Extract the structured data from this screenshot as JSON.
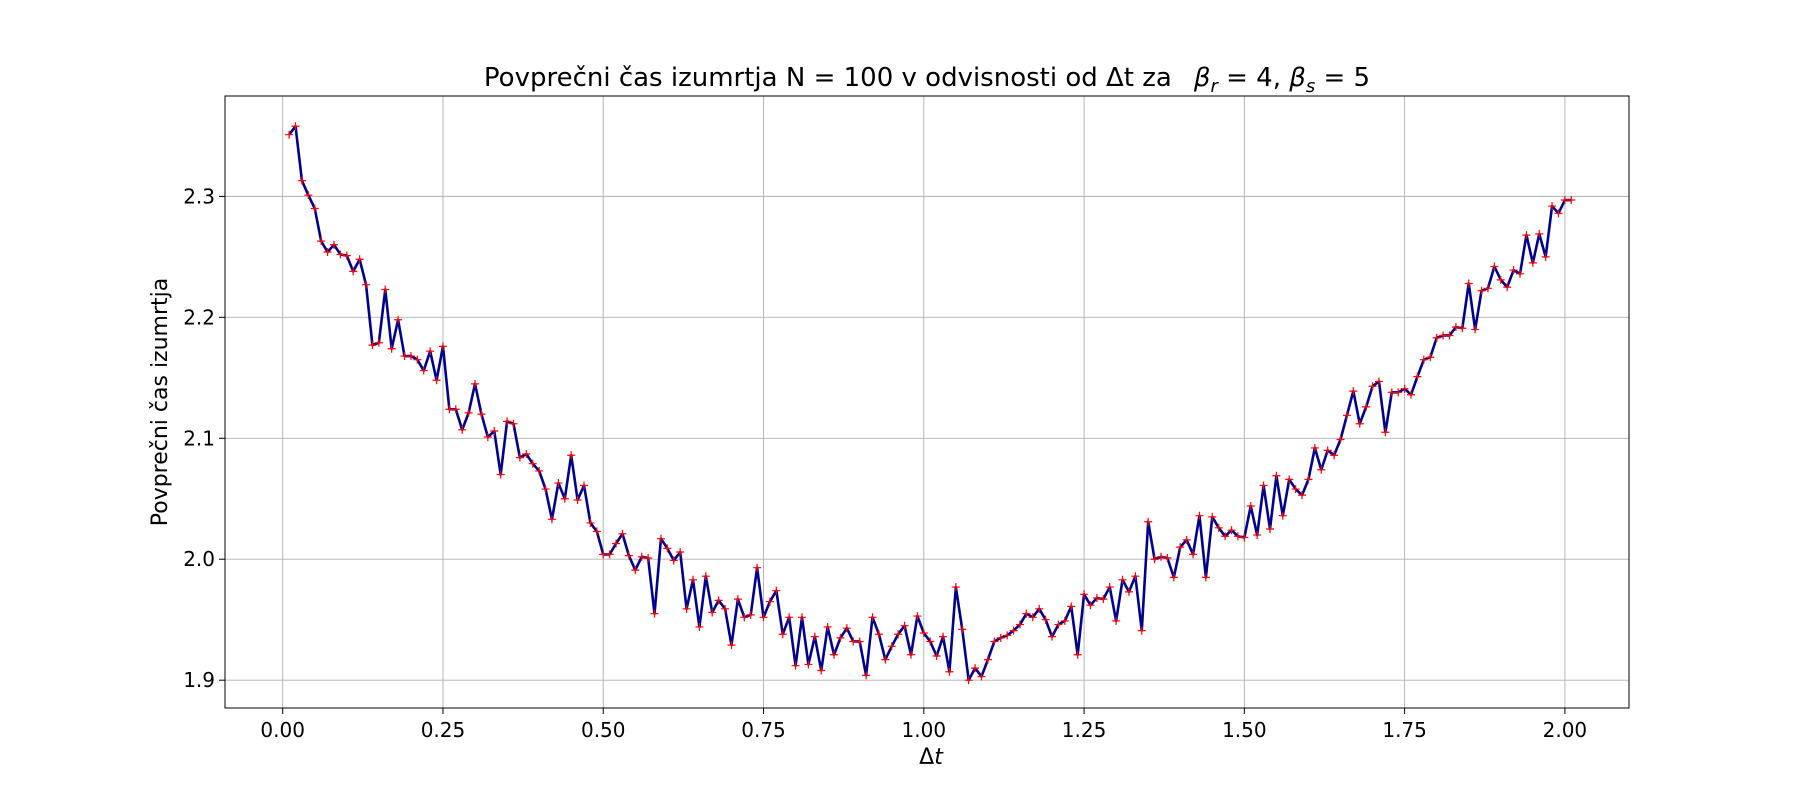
{
  "chart_data": {
    "type": "line",
    "title": "Povprečni čas izumrtja N = 100 v odvisnosti od Δt za",
    "title_math": {
      "beta_r_sym": "β",
      "beta_r_sub": "r",
      "beta_r_eq": " = 4, ",
      "beta_s_sym": "β",
      "beta_s_sub": "s",
      "beta_s_eq": " = 5"
    },
    "xlabel": "Δ",
    "xlabel_var": "t",
    "ylabel": "Povprečni čas izumrtja",
    "xlim": [
      -0.09,
      2.1
    ],
    "ylim": [
      1.877,
      2.383
    ],
    "xticks": [
      0.0,
      0.25,
      0.5,
      0.75,
      1.0,
      1.25,
      1.5,
      1.75,
      2.0
    ],
    "xtick_labels": [
      "0.00",
      "0.25",
      "0.50",
      "0.75",
      "1.00",
      "1.25",
      "1.50",
      "1.75",
      "2.00"
    ],
    "yticks": [
      1.9,
      2.0,
      2.1,
      2.2,
      2.3
    ],
    "ytick_labels": [
      "1.9",
      "2.0",
      "2.1",
      "2.2",
      "2.3"
    ],
    "grid": true,
    "line_color": "#00008b",
    "marker_color": "#ff0000",
    "marker": "+",
    "x_start": 0.01,
    "x_step": 0.01,
    "y": [
      2.351,
      2.358,
      2.313,
      2.301,
      2.29,
      2.263,
      2.254,
      2.26,
      2.252,
      2.251,
      2.238,
      2.248,
      2.227,
      2.177,
      2.179,
      2.223,
      2.174,
      2.198,
      2.168,
      2.168,
      2.165,
      2.156,
      2.172,
      2.148,
      2.176,
      2.124,
      2.124,
      2.107,
      2.121,
      2.145,
      2.12,
      2.101,
      2.106,
      2.07,
      2.114,
      2.112,
      2.084,
      2.087,
      2.079,
      2.073,
      2.058,
      2.033,
      2.063,
      2.05,
      2.086,
      2.049,
      2.061,
      2.03,
      2.023,
      2.004,
      2.004,
      2.013,
      2.021,
      2.003,
      1.991,
      2.002,
      2.001,
      1.955,
      2.017,
      2.009,
      1.999,
      2.006,
      1.959,
      1.983,
      1.944,
      1.986,
      1.956,
      1.966,
      1.959,
      1.929,
      1.967,
      1.952,
      1.954,
      1.993,
      1.952,
      1.965,
      1.974,
      1.938,
      1.952,
      1.912,
      1.952,
      1.913,
      1.936,
      1.908,
      1.944,
      1.921,
      1.935,
      1.943,
      1.932,
      1.932,
      1.904,
      1.952,
      1.938,
      1.917,
      1.928,
      1.938,
      1.945,
      1.921,
      1.953,
      1.939,
      1.932,
      1.92,
      1.936,
      1.907,
      1.977,
      1.942,
      1.9,
      1.91,
      1.903,
      1.917,
      1.932,
      1.935,
      1.937,
      1.941,
      1.946,
      1.955,
      1.952,
      1.959,
      1.95,
      1.936,
      1.946,
      1.949,
      1.961,
      1.921,
      1.971,
      1.962,
      1.968,
      1.967,
      1.977,
      1.949,
      1.983,
      1.973,
      1.986,
      1.941,
      2.031,
      2.0,
      2.002,
      2.001,
      1.985,
      2.01,
      2.016,
      2.004,
      2.036,
      1.985,
      2.035,
      2.026,
      2.019,
      2.024,
      2.019,
      2.018,
      2.044,
      2.02,
      2.061,
      2.025,
      2.069,
      2.036,
      2.066,
      2.058,
      2.053,
      2.066,
      2.092,
      2.074,
      2.09,
      2.086,
      2.099,
      2.119,
      2.139,
      2.112,
      2.126,
      2.143,
      2.147,
      2.105,
      2.138,
      2.138,
      2.141,
      2.136,
      2.151,
      2.165,
      2.167,
      2.183,
      2.185,
      2.185,
      2.192,
      2.191,
      2.228,
      2.19,
      2.222,
      2.224,
      2.242,
      2.231,
      2.225,
      2.239,
      2.236,
      2.268,
      2.245,
      2.269,
      2.25,
      2.292,
      2.286,
      2.297,
      2.297
    ]
  }
}
